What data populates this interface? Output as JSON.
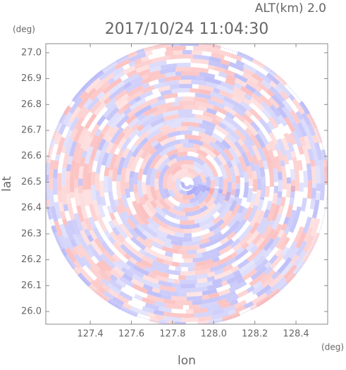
{
  "chart_data": {
    "type": "radar-ppi",
    "title": "2017/10/24 11:04:30",
    "subtitle": "ALT(km) 2.0",
    "x_label": "lon",
    "y_label": "lat",
    "x_unit": "(deg)",
    "y_unit": "(deg)",
    "xlim": [
      127.184,
      128.554
    ],
    "ylim": [
      25.951,
      27.035
    ],
    "xticks": [
      127.4,
      127.6,
      127.8,
      {
        "value": 128,
        "label": "128.0"
      },
      128.2,
      128.4
    ],
    "yticks": [
      {
        "value": 26,
        "label": "26.0"
      },
      26.1,
      26.2,
      26.3,
      26.4,
      26.5,
      26.6,
      26.7,
      26.8,
      26.9,
      {
        "value": 27,
        "label": "27.0"
      }
    ]
  }
}
